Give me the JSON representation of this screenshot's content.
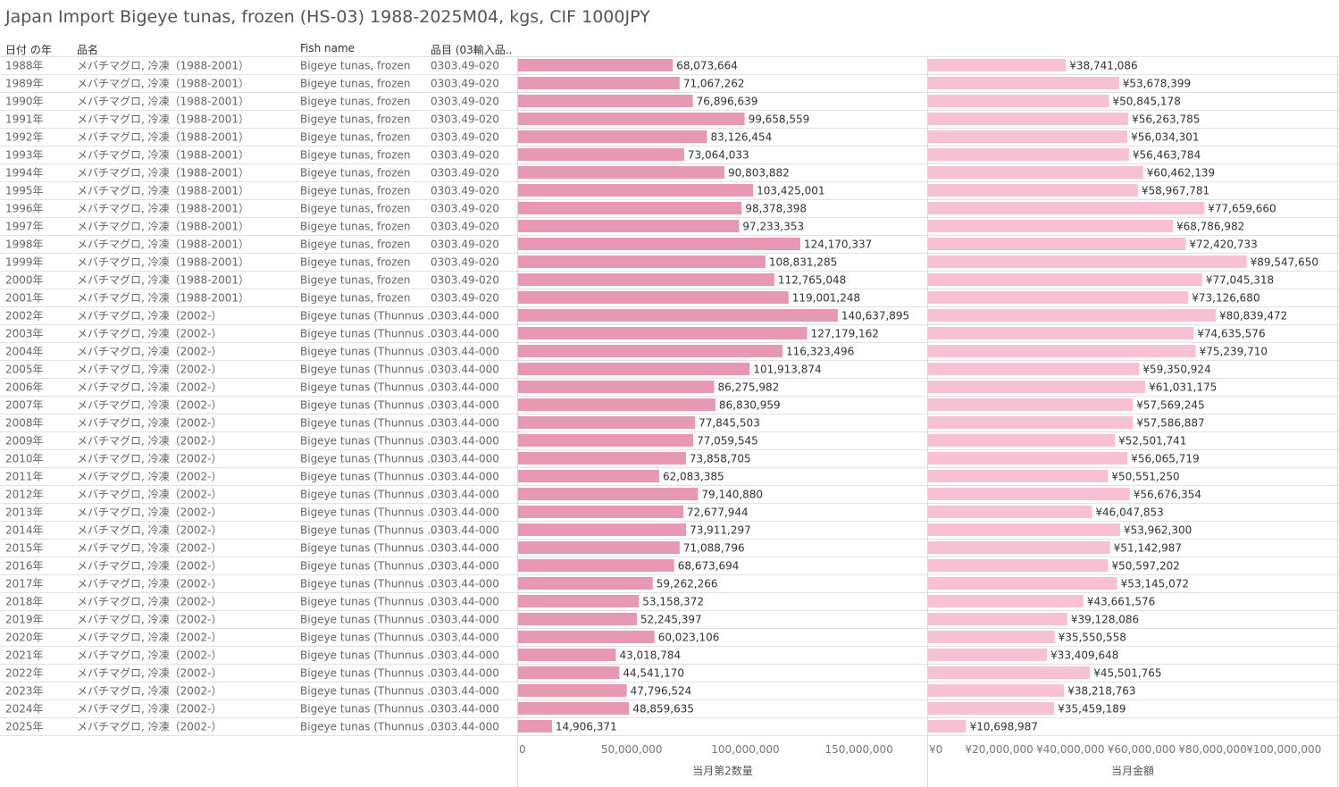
{
  "title": "Japan Import Bigeye tunas, frozen (HS-03) 1988-2025M04, kgs, CIF 1000JPY",
  "columns": {
    "year": "日付 の年",
    "name_ja": "品名",
    "fish_name": "Fish name",
    "code": "品目 (03輸入品.."
  },
  "chart_data": [
    {
      "type": "bar",
      "orientation": "horizontal",
      "xlabel": "当月第2数量",
      "xlim": [
        0,
        180000000
      ],
      "ticks": [
        0,
        50000000,
        100000000,
        150000000
      ],
      "tick_labels": [
        "0",
        "50,000,000",
        "100,000,000",
        "150,000,000"
      ],
      "color": "#e899b2",
      "categories": [
        "1988年",
        "1989年",
        "1990年",
        "1991年",
        "1992年",
        "1993年",
        "1994年",
        "1995年",
        "1996年",
        "1997年",
        "1998年",
        "1999年",
        "2000年",
        "2001年",
        "2002年",
        "2003年",
        "2004年",
        "2005年",
        "2006年",
        "2007年",
        "2008年",
        "2009年",
        "2010年",
        "2011年",
        "2012年",
        "2013年",
        "2014年",
        "2015年",
        "2016年",
        "2017年",
        "2018年",
        "2019年",
        "2020年",
        "2021年",
        "2022年",
        "2023年",
        "2024年",
        "2025年"
      ],
      "values": [
        68073664,
        71067262,
        76896639,
        99658559,
        83126454,
        73064033,
        90803882,
        103425001,
        98378398,
        97233353,
        124170337,
        108831285,
        112765048,
        119001248,
        140637895,
        127179162,
        116323496,
        101913874,
        86275982,
        86830959,
        77845503,
        77059545,
        73858705,
        62083385,
        79140880,
        72677944,
        73911297,
        71088796,
        68673694,
        59262266,
        53158372,
        52245397,
        60023106,
        43018784,
        44541170,
        47796524,
        48859635,
        14906371
      ],
      "labels": [
        "68,073,664",
        "71,067,262",
        "76,896,639",
        "99,658,559",
        "83,126,454",
        "73,064,033",
        "90,803,882",
        "103,425,001",
        "98,378,398",
        "97,233,353",
        "124,170,337",
        "108,831,285",
        "112,765,048",
        "119,001,248",
        "140,637,895",
        "127,179,162",
        "116,323,496",
        "101,913,874",
        "86,275,982",
        "86,830,959",
        "77,845,503",
        "77,059,545",
        "73,858,705",
        "62,083,385",
        "79,140,880",
        "72,677,944",
        "73,911,297",
        "71,088,796",
        "68,673,694",
        "59,262,266",
        "53,158,372",
        "52,245,397",
        "60,023,106",
        "43,018,784",
        "44,541,170",
        "47,796,524",
        "48,859,635",
        "14,906,371"
      ]
    },
    {
      "type": "bar",
      "orientation": "horizontal",
      "xlabel": "当月金額",
      "xlim": [
        0,
        115000000
      ],
      "ticks": [
        0,
        20000000,
        40000000,
        60000000,
        80000000,
        100000000
      ],
      "tick_labels": [
        "¥0",
        "¥20,000,000",
        "¥40,000,000",
        "¥60,000,000",
        "¥80,000,000",
        "¥100,000,000"
      ],
      "color": "#f7c0d3",
      "categories": [
        "1988年",
        "1989年",
        "1990年",
        "1991年",
        "1992年",
        "1993年",
        "1994年",
        "1995年",
        "1996年",
        "1997年",
        "1998年",
        "1999年",
        "2000年",
        "2001年",
        "2002年",
        "2003年",
        "2004年",
        "2005年",
        "2006年",
        "2007年",
        "2008年",
        "2009年",
        "2010年",
        "2011年",
        "2012年",
        "2013年",
        "2014年",
        "2015年",
        "2016年",
        "2017年",
        "2018年",
        "2019年",
        "2020年",
        "2021年",
        "2022年",
        "2023年",
        "2024年",
        "2025年"
      ],
      "values": [
        38741086,
        53678399,
        50845178,
        56263785,
        56034301,
        56463784,
        60462139,
        58967781,
        77659660,
        68786982,
        72420733,
        89547650,
        77045318,
        73126680,
        80839472,
        74635576,
        75239710,
        59350924,
        61031175,
        57569245,
        57586887,
        52501741,
        56065719,
        50551250,
        56676354,
        46047853,
        53962300,
        51142987,
        50597202,
        53145072,
        43661576,
        39128086,
        35550558,
        33409648,
        45501765,
        38218763,
        35459189,
        10698987
      ],
      "labels": [
        "¥38,741,086",
        "¥53,678,399",
        "¥50,845,178",
        "¥56,263,785",
        "¥56,034,301",
        "¥56,463,784",
        "¥60,462,139",
        "¥58,967,781",
        "¥77,659,660",
        "¥68,786,982",
        "¥72,420,733",
        "¥89,547,650",
        "¥77,045,318",
        "¥73,126,680",
        "¥80,839,472",
        "¥74,635,576",
        "¥75,239,710",
        "¥59,350,924",
        "¥61,031,175",
        "¥57,569,245",
        "¥57,586,887",
        "¥52,501,741",
        "¥56,065,719",
        "¥50,551,250",
        "¥56,676,354",
        "¥46,047,853",
        "¥53,962,300",
        "¥51,142,987",
        "¥50,597,202",
        "¥53,145,072",
        "¥43,661,576",
        "¥39,128,086",
        "¥35,550,558",
        "¥33,409,648",
        "¥45,501,765",
        "¥38,218,763",
        "¥35,459,189",
        "¥10,698,987"
      ]
    }
  ],
  "row_groups": [
    {
      "count": 14,
      "name_ja": "メバチマグロ, 冷凍（1988-2001）",
      "fish_name": "Bigeye tunas, frozen",
      "code": "0303.49-020"
    },
    {
      "count": 24,
      "name_ja": "メバチマグロ, 冷凍（2002-）",
      "fish_name": "Bigeye tunas (Thunnus ..",
      "code": "0303.44-000"
    }
  ]
}
